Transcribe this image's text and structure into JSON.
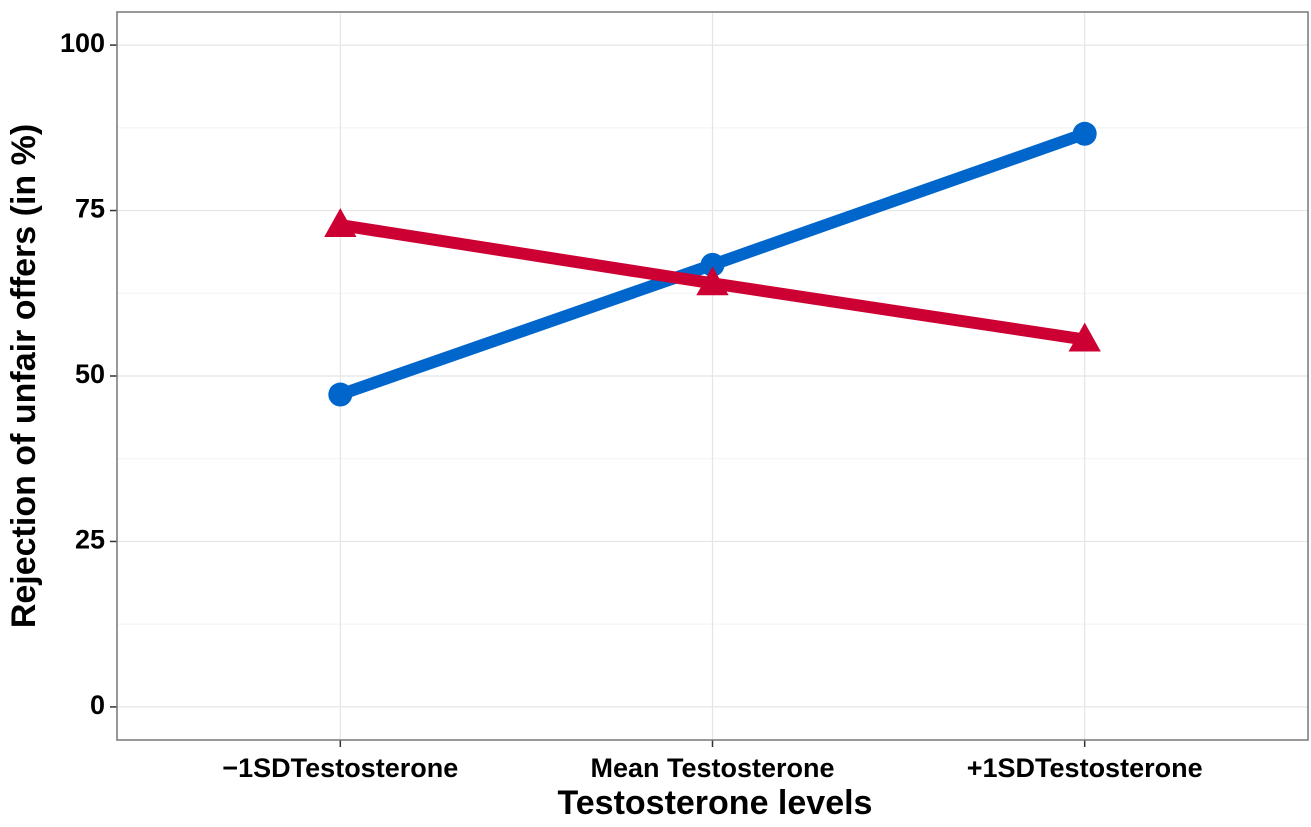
{
  "chart_data": {
    "type": "line",
    "x_label": "Testosterone levels",
    "y_label": "Rejection of unfair offers (in %)",
    "categories": [
      "−1SDTestosterone",
      "Mean Testosterone",
      "+1SDTestosterone"
    ],
    "series": [
      {
        "color": "#0066cc",
        "marker": "circle",
        "values": [
          47.2,
          66.8,
          86.6
        ]
      },
      {
        "color": "#cc0033",
        "marker": "triangle",
        "values": [
          72.8,
          64.0,
          55.5
        ]
      }
    ],
    "ylim": [
      -5,
      105
    ],
    "yticks": [
      0,
      25,
      50,
      75,
      100
    ],
    "minor_yticks": [
      12.5,
      37.5,
      62.5,
      87.5
    ],
    "grid": true
  }
}
